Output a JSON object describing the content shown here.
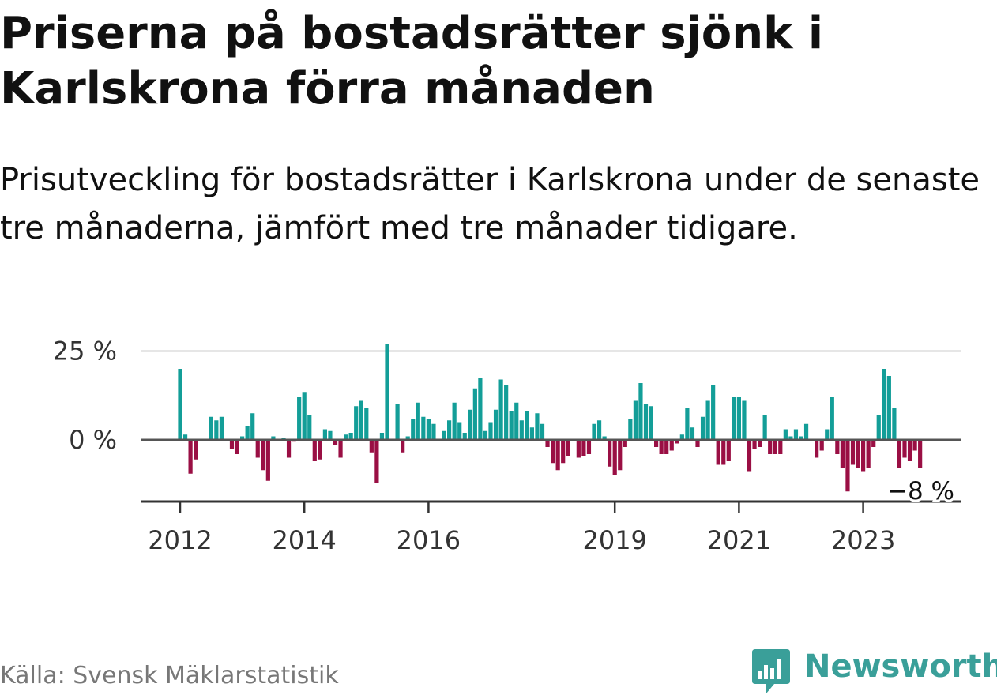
{
  "title": "Priserna på bostadsrätter sjönk i Karlskrona förra månaden",
  "subtitle": "Prisutveckling för bostadsrätter i Karlskrona under de senaste tre månaderna, jämfört med tre månader tidigare.",
  "source": "Källa: Svensk Mäklarstatistik",
  "brand": {
    "name": "Newsworthy",
    "icon": "bar-chart-speech-bubble-icon"
  },
  "colors": {
    "positive": "#139e98",
    "negative": "#9a0f44",
    "zero_line": "#555555",
    "grid": "#dddddd",
    "axis": "#333333",
    "brand": "#3a9f99"
  },
  "chart_data": {
    "type": "bar",
    "x_unit": "month",
    "x_start": "2012-01",
    "x_end": "2023-12",
    "y_unit": "%",
    "ylim": [
      -14,
      27
    ],
    "y_ticks": [
      0,
      25
    ],
    "y_tick_labels": [
      "0 %",
      "25 %"
    ],
    "x_ticks": [
      "2012-01",
      "2014-01",
      "2016-01",
      "2019-01",
      "2021-01",
      "2023-01"
    ],
    "x_tick_labels": [
      "2012",
      "2014",
      "2016",
      "2019",
      "2021",
      "2023"
    ],
    "grid": true,
    "end_label": "−8 %",
    "values": [
      20,
      1.5,
      -9.5,
      -5.5,
      null,
      null,
      6.5,
      5.5,
      6.5,
      null,
      -2.5,
      -4,
      1,
      4,
      7.5,
      -5,
      -8.5,
      -11.5,
      1,
      null,
      0.5,
      -5,
      -0.5,
      12,
      13.5,
      7,
      -6,
      -5.5,
      3,
      2.5,
      -1.5,
      -5,
      1.5,
      2,
      9.5,
      11,
      9,
      -3.5,
      -12,
      2,
      27,
      null,
      10,
      -3.5,
      1,
      6,
      10.5,
      6.5,
      6,
      4.5,
      null,
      2.5,
      5.5,
      10.5,
      5,
      2,
      8.5,
      14.5,
      17.5,
      2.5,
      5,
      8.5,
      17,
      15.5,
      8,
      10.5,
      5.5,
      8,
      3.5,
      7.5,
      4.5,
      -2,
      -6.5,
      -8.5,
      -6.5,
      -4.5,
      null,
      -5,
      -4.5,
      -4,
      4.5,
      5.5,
      1,
      -7.5,
      -10,
      -8.5,
      -2,
      6,
      11,
      16,
      10,
      9.5,
      -2,
      -4,
      -4,
      -3,
      -1,
      1.5,
      9,
      3.5,
      -2,
      6.5,
      11,
      15.5,
      -7,
      -7,
      -6,
      12,
      12,
      11,
      -9,
      -2.5,
      -2,
      7,
      -4,
      -4,
      -4,
      3,
      1,
      3,
      1,
      4.5,
      null,
      -5,
      -3,
      3,
      12,
      -4,
      -8,
      -14.5,
      -7,
      -8,
      -9,
      -8,
      -2,
      7,
      20,
      18,
      9,
      -8,
      -5,
      -6,
      -3,
      -8
    ]
  }
}
